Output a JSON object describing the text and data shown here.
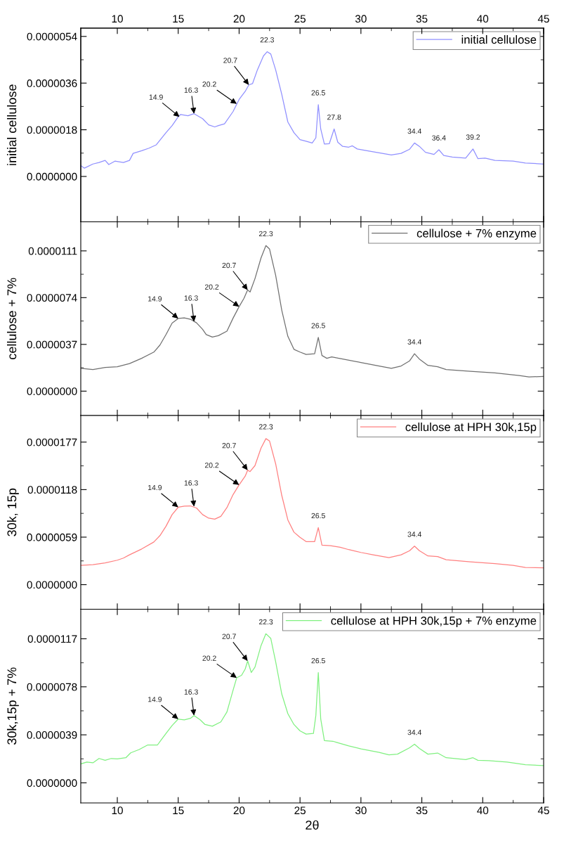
{
  "chart_data": [
    {
      "type": "line",
      "ylabel": "initial cellulose",
      "xlim": [
        7,
        45
      ],
      "xticks": [
        10,
        15,
        20,
        25,
        30,
        35,
        40,
        45
      ],
      "x2lim": [
        7,
        45
      ],
      "x2ticks": [
        10,
        15,
        20,
        25,
        30,
        35,
        40,
        45
      ],
      "tick_labels": "y",
      "ylim": [
        -1.75e-06,
        5.72e-06
      ],
      "yticks": [
        {
          "value": 0,
          "label": "0.0000000"
        },
        {
          "value": 1.8e-06,
          "label": "0.0000018"
        },
        {
          "value": 3.6e-06,
          "label": "0.0000036"
        },
        {
          "value": 5.4e-06,
          "label": "0.0000054"
        }
      ],
      "legend": "top right",
      "series": [
        {
          "name": "initial cellulose",
          "color": "#9090ff",
          "x": [
            7,
            7.3,
            8,
            8.5,
            9,
            9.3,
            9.8,
            10.5,
            11,
            11.3,
            12,
            12.6,
            13.2,
            13.5,
            14,
            14.5,
            15,
            15.2,
            15.8,
            16.3,
            17,
            17.5,
            18,
            18.3,
            18.8,
            19.5,
            20,
            20.5,
            20.8,
            21.1,
            21.5,
            22,
            22.3,
            22.6,
            23,
            23.5,
            24,
            24.5,
            25,
            25.5,
            26,
            26.3,
            26.5,
            26.7,
            27,
            27.4,
            27.8,
            28.1,
            28.5,
            29,
            29.3,
            29.7,
            30.5,
            31.5,
            32.5,
            33.3,
            34,
            34.4,
            34.8,
            35.3,
            36,
            36.4,
            36.8,
            37.5,
            38.6,
            39.2,
            39.6,
            40.2,
            41,
            42.5,
            43.5,
            45
          ],
          "values": [
            4.2e-07,
            3.2e-07,
            4.8e-07,
            5.4e-07,
            6.2e-07,
            4.6e-07,
            5.9e-07,
            5.4e-07,
            6.2e-07,
            8.9e-07,
            9.9e-07,
            1.09e-06,
            1.22e-06,
            1.4e-06,
            1.69e-06,
            1.96e-06,
            2.3e-06,
            2.39e-06,
            2.34e-06,
            2.42e-06,
            2.23e-06,
            1.99e-06,
            1.91e-06,
            1.96e-06,
            2.03e-06,
            2.5e-06,
            2.97e-06,
            3.28e-06,
            3.53e-06,
            3.58e-06,
            4.11e-06,
            4.65e-06,
            4.81e-06,
            4.72e-06,
            4.11e-06,
            3.17e-06,
            2.1e-06,
            1.69e-06,
            1.42e-06,
            1.36e-06,
            1.29e-06,
            1.49e-06,
            2.77e-06,
            1.83e-06,
            1.25e-06,
            1.26e-06,
            1.83e-06,
            1.32e-06,
            1.16e-06,
            1.13e-06,
            1.18e-06,
            1.06e-06,
            9.9e-07,
            9.1e-07,
            8.3e-07,
            8.9e-07,
            1.05e-06,
            1.29e-06,
            1.16e-06,
            9.3e-07,
            8.5e-07,
            1.03e-06,
            8.1e-07,
            7.5e-07,
            7.1e-07,
            1.06e-06,
            6.9e-07,
            7.1e-07,
            6.2e-07,
            5.9e-07,
            5.2e-07,
            4.8e-07
          ]
        }
      ],
      "annotations": [
        {
          "text": "14.9",
          "x": 15.1,
          "y": 2.3e-06
        },
        {
          "text": "16.3",
          "x": 16.3,
          "y": 2.42e-06
        },
        {
          "text": "20.2",
          "x": 19.8,
          "y": 2.8e-06
        },
        {
          "text": "20.7",
          "x": 20.8,
          "y": 3.53e-06
        },
        {
          "text": "22.3",
          "x": 22.3,
          "y": 4.81e-06
        },
        {
          "text": "26.5",
          "x": 26.5,
          "y": 2.77e-06
        },
        {
          "text": "27.8",
          "x": 27.8,
          "y": 1.83e-06
        },
        {
          "text": "34.4",
          "x": 34.4,
          "y": 1.29e-06
        },
        {
          "text": "36.4",
          "x": 36.4,
          "y": 1.03e-06
        },
        {
          "text": "39.2",
          "x": 39.2,
          "y": 1.06e-06
        }
      ]
    },
    {
      "type": "line",
      "ylabel": "cellulose + 7%",
      "xlim": [
        7,
        45
      ],
      "xticks": [
        10,
        15,
        20,
        25,
        30,
        35,
        40,
        45
      ],
      "tick_labels": "y",
      "ylim": [
        -1.93e-06,
        1.34e-05
      ],
      "yticks": [
        {
          "value": 0,
          "label": "0.0000000"
        },
        {
          "value": 3.7e-06,
          "label": "0.0000037"
        },
        {
          "value": 7.4e-06,
          "label": "0.0000074"
        },
        {
          "value": 1.11e-05,
          "label": "0.0000111"
        }
      ],
      "legend": "top right",
      "series": [
        {
          "name": "cellulose + 7% enzyme",
          "color": "#707070",
          "x": [
            7,
            8,
            9,
            10,
            11,
            12,
            13,
            13.5,
            14,
            14.5,
            15,
            15.5,
            16,
            16.5,
            17,
            17.3,
            17.8,
            18.3,
            19,
            19.5,
            20,
            20.4,
            20.7,
            20.9,
            21.3,
            21.8,
            22.2,
            22.5,
            23,
            23.5,
            24,
            24.5,
            25,
            25.5,
            26.2,
            26.5,
            26.8,
            27.2,
            27.6,
            28.5,
            30,
            31.5,
            32.5,
            33.3,
            34,
            34.4,
            34.8,
            35.5,
            36.3,
            37,
            39,
            41,
            43,
            43.8,
            45
          ],
          "values": [
            1.8e-06,
            1.71e-06,
            1.88e-06,
            1.93e-06,
            2.18e-06,
            2.6e-06,
            3.09e-06,
            3.65e-06,
            4.48e-06,
            5.39e-06,
            5.75e-06,
            5.8e-06,
            5.69e-06,
            5.41e-06,
            4.89e-06,
            4.48e-06,
            4.28e-06,
            4.39e-06,
            4.75e-06,
            5.77e-06,
            6.69e-06,
            7.35e-06,
            8.01e-06,
            7.85e-06,
            8.9e-06,
            1.055e-05,
            1.152e-05,
            1.124e-05,
            9.17e-06,
            6.41e-06,
            4.34e-06,
            3.31e-06,
            3.09e-06,
            2.9e-06,
            2.96e-06,
            4.25e-06,
            2.82e-06,
            2.6e-06,
            2.71e-06,
            2.54e-06,
            2.27e-06,
            1.99e-06,
            1.8e-06,
            1.99e-06,
            2.4e-06,
            2.96e-06,
            2.54e-06,
            2.04e-06,
            1.93e-06,
            1.71e-06,
            1.57e-06,
            1.44e-06,
            1.24e-06,
            1.13e-06,
            1.16e-06
          ]
        }
      ],
      "annotations": [
        {
          "text": "14.9",
          "x": 15.0,
          "y": 5.75e-06
        },
        {
          "text": "16.3",
          "x": 16.3,
          "y": 5.5e-06
        },
        {
          "text": "20.2",
          "x": 20.0,
          "y": 6.69e-06
        },
        {
          "text": "20.7",
          "x": 20.7,
          "y": 8.01e-06
        },
        {
          "text": "22.3",
          "x": 22.2,
          "y": 1.152e-05
        },
        {
          "text": "26.5",
          "x": 26.5,
          "y": 4.25e-06
        },
        {
          "text": "34.4",
          "x": 34.4,
          "y": 2.96e-06
        }
      ]
    },
    {
      "type": "line",
      "ylabel": "30k, 15p",
      "xlim": [
        7,
        45
      ],
      "xticks": [
        10,
        15,
        20,
        25,
        30,
        35,
        40,
        45
      ],
      "tick_labels": "y",
      "ylim": [
        -3.05e-06,
        2.1e-05
      ],
      "yticks": [
        {
          "value": 0,
          "label": "0.0000000"
        },
        {
          "value": 5.9e-06,
          "label": "0.0000059"
        },
        {
          "value": 1.18e-05,
          "label": "0.0000118"
        },
        {
          "value": 1.77e-05,
          "label": "0.0000177"
        }
      ],
      "legend": "top right",
      "series": [
        {
          "name": "cellulose at HPH 30k,15p",
          "color": "#ff8080",
          "x": [
            7,
            8,
            9,
            10,
            10.5,
            11,
            12,
            13,
            13.5,
            14,
            14.5,
            15,
            15.5,
            16,
            16.5,
            17,
            17.5,
            18,
            18.5,
            19,
            19.5,
            20,
            20.5,
            20.7,
            20.9,
            21.3,
            21.8,
            22.2,
            22.5,
            23,
            23.5,
            24,
            24.5,
            25,
            25.5,
            26.2,
            26.5,
            26.8,
            27.5,
            28.3,
            29,
            30,
            31,
            32.3,
            33.3,
            34,
            34.4,
            34.8,
            35.5,
            36.3,
            37,
            39,
            41,
            42.5,
            43.5,
            45
          ],
          "values": [
            2.39e-06,
            2.48e-06,
            2.7e-06,
            3.04e-06,
            3.3e-06,
            3.7e-06,
            4.43e-06,
            5.3e-06,
            6.09e-06,
            7.26e-06,
            8.7e-06,
            9.61e-06,
            9.74e-06,
            9.78e-06,
            9.52e-06,
            8.7e-06,
            8.26e-06,
            8.13e-06,
            8.48e-06,
            9.57e-06,
            1.117e-05,
            1.239e-05,
            1.348e-05,
            1.422e-05,
            1.404e-05,
            1.478e-05,
            1.696e-05,
            1.813e-05,
            1.783e-05,
            1.5e-05,
            1.109e-05,
            8.04e-06,
            6.52e-06,
            5.87e-06,
            5.35e-06,
            5.35e-06,
            7.09e-06,
            4.91e-06,
            4.83e-06,
            4.65e-06,
            4.35e-06,
            4e-06,
            3.7e-06,
            3.35e-06,
            3.7e-06,
            4.22e-06,
            4.78e-06,
            4.22e-06,
            3.57e-06,
            3.48e-06,
            3.09e-06,
            2.83e-06,
            2.61e-06,
            2.39e-06,
            2.13e-06,
            2.09e-06
          ]
        }
      ],
      "annotations": [
        {
          "text": "14.9",
          "x": 15.0,
          "y": 9.61e-06
        },
        {
          "text": "16.3",
          "x": 16.3,
          "y": 9.7e-06
        },
        {
          "text": "20.2",
          "x": 20.0,
          "y": 1.239e-05
        },
        {
          "text": "20.7",
          "x": 20.7,
          "y": 1.422e-05
        },
        {
          "text": "22.3",
          "x": 22.2,
          "y": 1.813e-05
        },
        {
          "text": "26.5",
          "x": 26.5,
          "y": 7.09e-06
        },
        {
          "text": "34.4",
          "x": 34.4,
          "y": 4.78e-06
        }
      ]
    },
    {
      "type": "line",
      "ylabel": "30k,15p + 7%",
      "xlabel": "2θ",
      "xlim": [
        7,
        45
      ],
      "xticks": [
        10,
        15,
        20,
        25,
        30,
        35,
        40,
        45
      ],
      "ylim": [
        -1.63e-06,
        1.41e-05
      ],
      "yticks": [
        {
          "value": 0,
          "label": "0.0000000"
        },
        {
          "value": 3.9e-06,
          "label": "0.0000039"
        },
        {
          "value": 7.8e-06,
          "label": "0.0000078"
        },
        {
          "value": 1.17e-05,
          "label": "0.0000117"
        }
      ],
      "legend": "top right",
      "series": [
        {
          "name": "cellulose at HPH 30k,15p + 7% enzyme",
          "color": "#80f080",
          "x": [
            7,
            7.5,
            8,
            8.5,
            9,
            9.5,
            10,
            10.7,
            11.1,
            11.8,
            12.5,
            13.3,
            13.6,
            14,
            14.5,
            15,
            15.5,
            16,
            16.3,
            16.8,
            17.2,
            17.8,
            18.5,
            19,
            19.5,
            19.8,
            20.2,
            20.5,
            20.7,
            21,
            21.3,
            21.8,
            22.2,
            22.6,
            23,
            23.5,
            24,
            24.5,
            25,
            25.5,
            26.1,
            26.3,
            26.5,
            26.7,
            27,
            27.7,
            28,
            29,
            30,
            31.5,
            32.3,
            33,
            34,
            34.4,
            34.8,
            35.5,
            36.3,
            37,
            38.6,
            39.2,
            39.6,
            40.5,
            42,
            43.5,
            45
          ],
          "values": [
            1.54e-06,
            1.69e-06,
            1.63e-06,
            1.98e-06,
            1.83e-06,
            1.98e-06,
            1.95e-06,
            2.04e-06,
            2.44e-06,
            2.71e-06,
            3.08e-06,
            3.08e-06,
            3.49e-06,
            4.02e-06,
            4.66e-06,
            5.18e-06,
            5.12e-06,
            5.24e-06,
            5.47e-06,
            5.12e-06,
            4.74e-06,
            4.6e-06,
            4.95e-06,
            5.76e-06,
            7.51e-06,
            8.53e-06,
            8.73e-06,
            9.25e-06,
            9.9e-06,
            8.96e-06,
            9.4e-06,
            1.115e-05,
            1.211e-05,
            1.173e-05,
            9.84e-06,
            7.22e-06,
            5.62e-06,
            4.74e-06,
            4.22e-06,
            3.96e-06,
            4.02e-06,
            5.47e-06,
            8.96e-06,
            5.18e-06,
            3.43e-06,
            3.38e-06,
            3.29e-06,
            3e-06,
            2.76e-06,
            2.47e-06,
            2.27e-06,
            2.33e-06,
            2.85e-06,
            3.14e-06,
            2.79e-06,
            2.33e-06,
            2.42e-06,
            2.04e-06,
            1.89e-06,
            2.04e-06,
            1.83e-06,
            1.8e-06,
            1.69e-06,
            1.48e-06,
            1.4e-06
          ]
        }
      ],
      "annotations": [
        {
          "text": "14.9",
          "x": 15.0,
          "y": 5.18e-06
        },
        {
          "text": "16.3",
          "x": 16.3,
          "y": 5.47e-06
        },
        {
          "text": "20.2",
          "x": 19.8,
          "y": 8.53e-06
        },
        {
          "text": "20.7",
          "x": 20.7,
          "y": 9.9e-06
        },
        {
          "text": "22.3",
          "x": 22.2,
          "y": 1.211e-05
        },
        {
          "text": "26.5",
          "x": 26.5,
          "y": 8.96e-06
        },
        {
          "text": "34.4",
          "x": 34.4,
          "y": 3.14e-06
        }
      ]
    }
  ]
}
